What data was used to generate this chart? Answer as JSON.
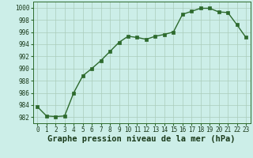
{
  "x": [
    0,
    1,
    2,
    3,
    4,
    5,
    6,
    7,
    8,
    9,
    10,
    11,
    12,
    13,
    14,
    15,
    16,
    17,
    18,
    19,
    20,
    21,
    22,
    23
  ],
  "y": [
    983.7,
    982.2,
    982.1,
    982.2,
    986.0,
    988.8,
    990.0,
    991.3,
    992.8,
    994.3,
    995.3,
    995.1,
    994.8,
    995.3,
    995.6,
    996.0,
    998.9,
    999.4,
    999.9,
    999.9,
    999.3,
    999.2,
    997.2,
    995.1
  ],
  "line_color": "#2d6a2d",
  "marker_color": "#2d6a2d",
  "bg_color": "#cceee8",
  "grid_color": "#aaccbb",
  "xlabel": "Graphe pression niveau de la mer (hPa)",
  "xlim": [
    -0.5,
    23.5
  ],
  "ylim": [
    981,
    1001
  ],
  "yticks": [
    982,
    984,
    986,
    988,
    990,
    992,
    994,
    996,
    998,
    1000
  ],
  "xticks": [
    0,
    1,
    2,
    3,
    4,
    5,
    6,
    7,
    8,
    9,
    10,
    11,
    12,
    13,
    14,
    15,
    16,
    17,
    18,
    19,
    20,
    21,
    22,
    23
  ],
  "tick_fontsize": 5.5,
  "xlabel_fontsize": 7.5,
  "line_width": 1.0,
  "marker_size": 2.5
}
